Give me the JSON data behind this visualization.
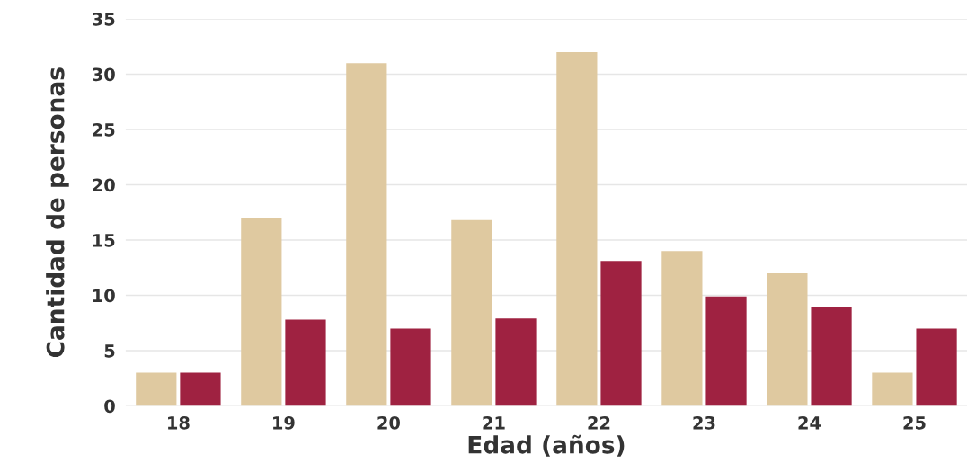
{
  "chart_data": {
    "type": "bar",
    "xlabel": "Edad (años)",
    "ylabel": "Cantidad de personas",
    "categories": [
      "18",
      "19",
      "20",
      "21",
      "22",
      "23",
      "24",
      "25"
    ],
    "series": [
      {
        "color": "#dfc9a0",
        "values": [
          3,
          17,
          31,
          16.8,
          32,
          14,
          12,
          3
        ]
      },
      {
        "color": "#9f2241",
        "values": [
          3,
          7.8,
          7,
          7.9,
          13.1,
          9.9,
          8.9,
          7
        ]
      }
    ],
    "ylim": [
      0,
      35
    ],
    "yticks": [
      0,
      5,
      10,
      15,
      20,
      25,
      30,
      35
    ],
    "grid": "y"
  }
}
